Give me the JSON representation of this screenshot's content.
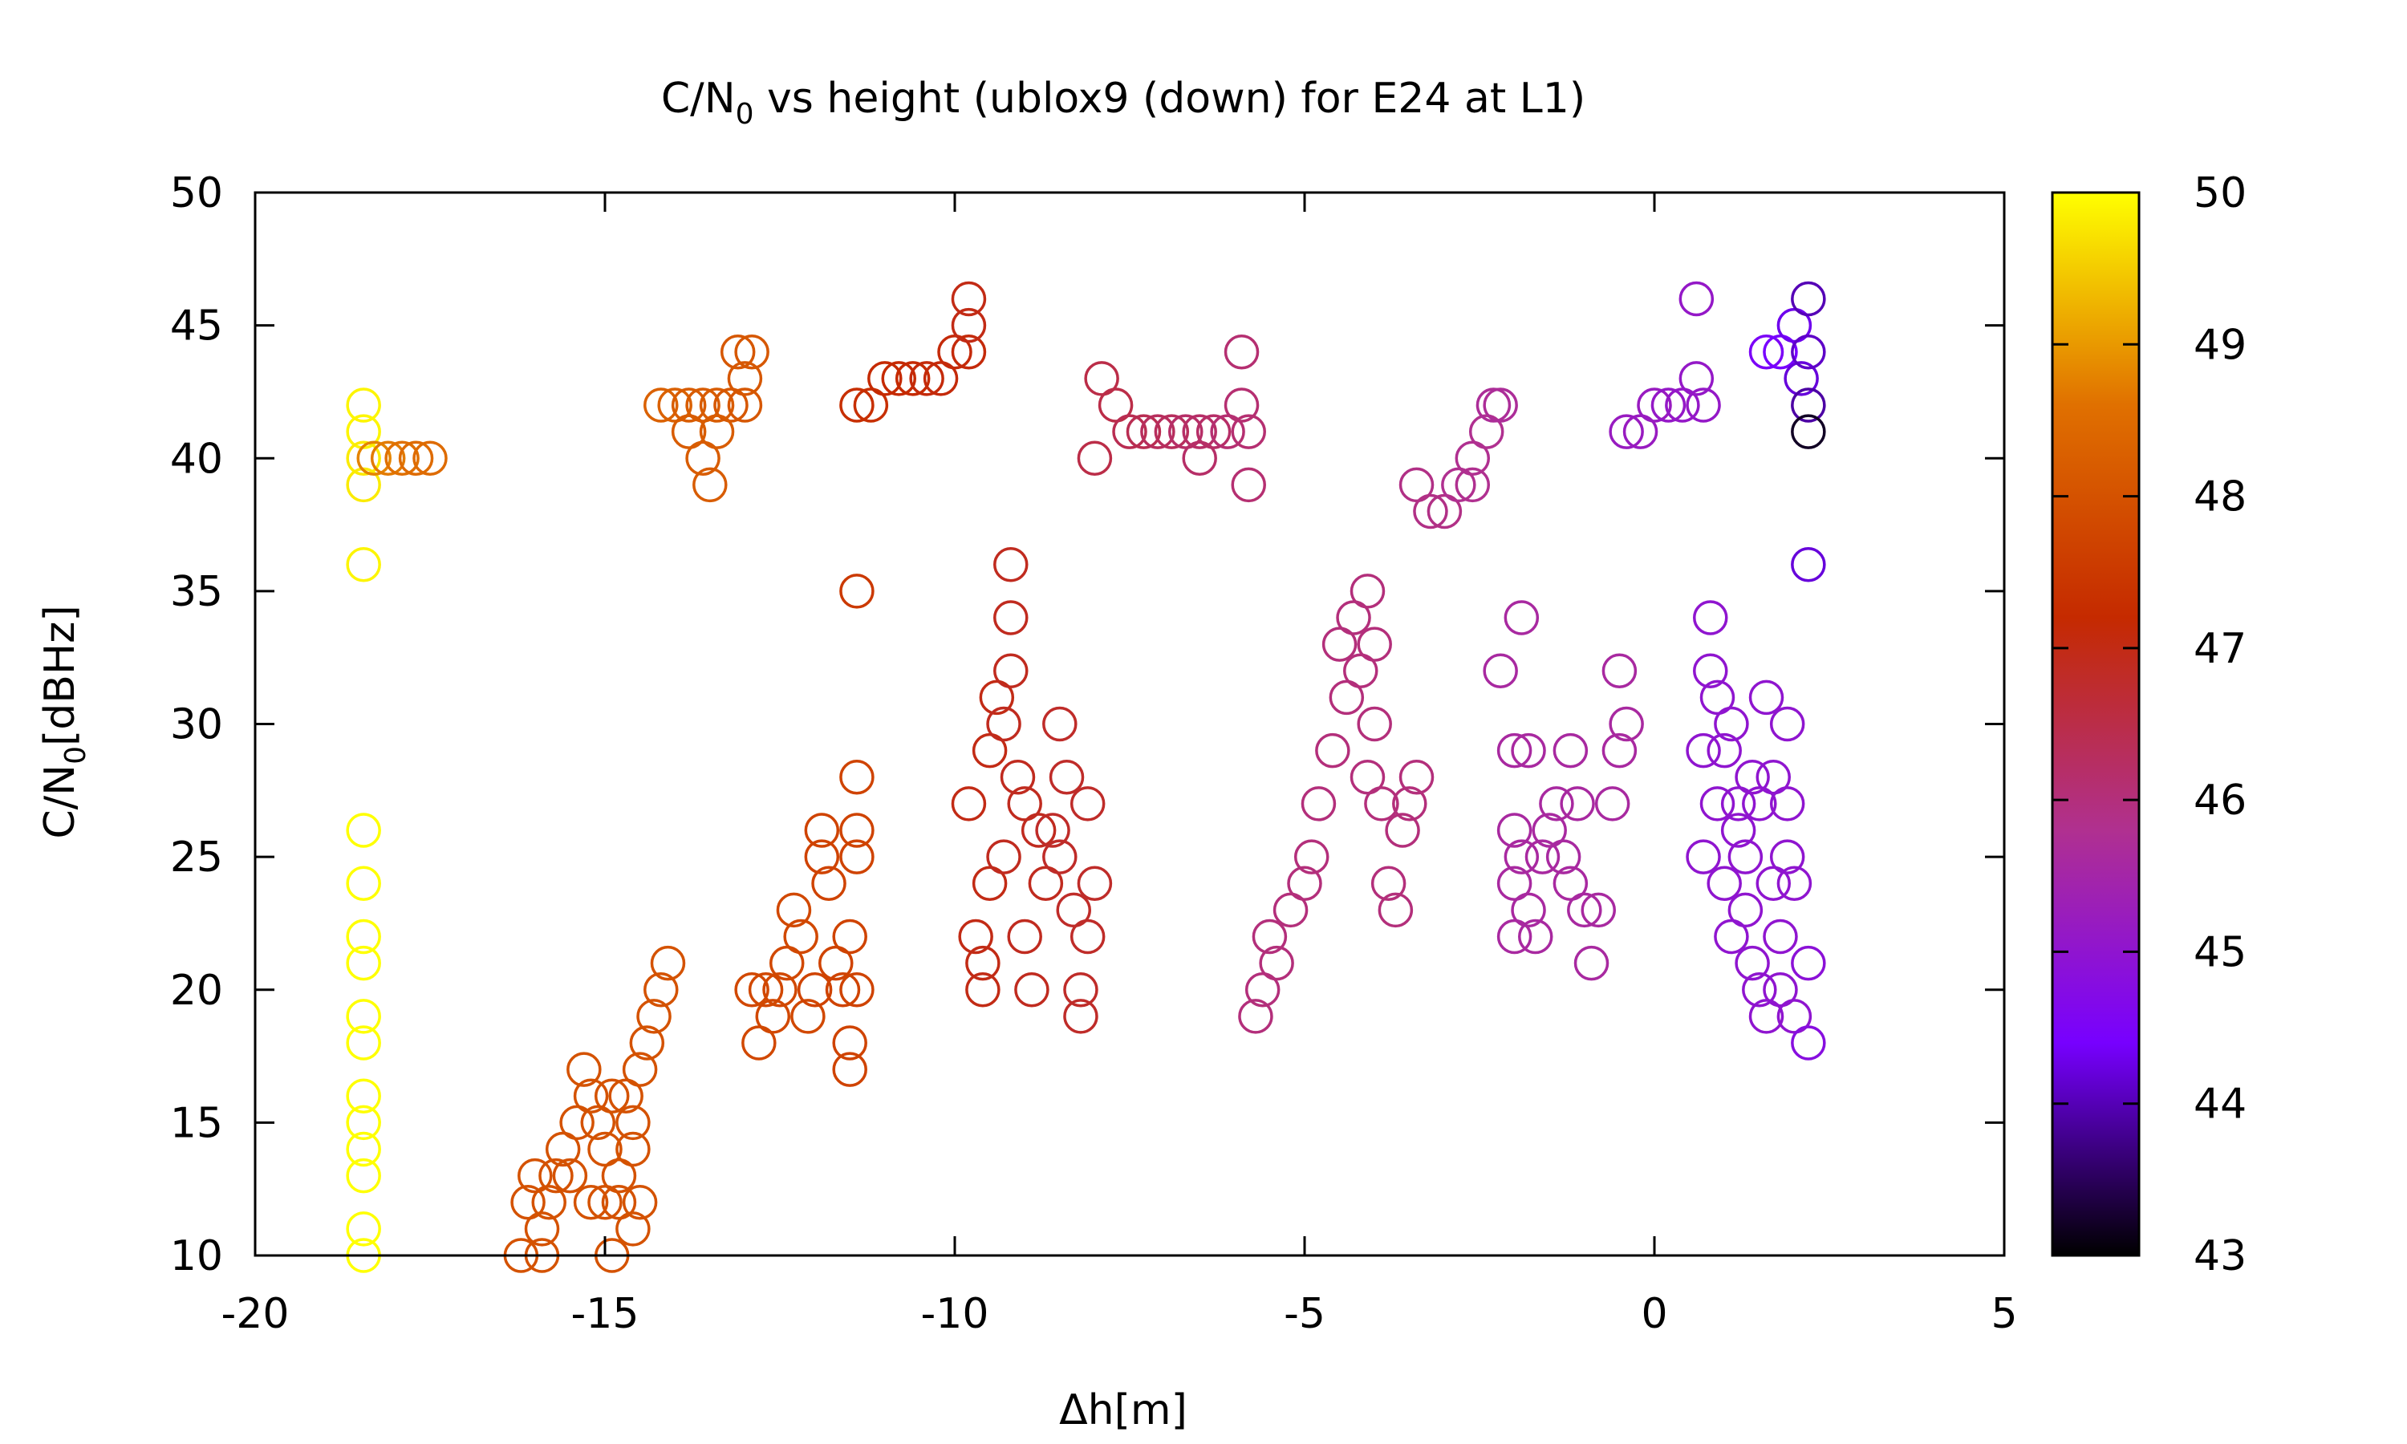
{
  "chart_data": {
    "type": "scatter",
    "title": {
      "prefix": "C/N",
      "sub": "0",
      "rest": " vs height (ublox9 (down) for E24 at L1)"
    },
    "xlabel": "Δh[m]",
    "ylabel": {
      "prefix": "C/N",
      "sub": "0",
      "rest": "[dBHz]"
    },
    "xlim": [
      -20,
      5
    ],
    "ylim": [
      10,
      50
    ],
    "xticks": [
      "-20",
      "-15",
      "-10",
      "-5",
      "0",
      "5"
    ],
    "yticks": [
      "10",
      "15",
      "20",
      "25",
      "30",
      "35",
      "40",
      "45",
      "50"
    ],
    "marker": "open-circle",
    "colorbar": {
      "range": [
        43,
        50
      ],
      "ticks": [
        "43",
        "44",
        "45",
        "46",
        "47",
        "48",
        "49",
        "50"
      ],
      "palette": [
        "#000000",
        "#7700ff",
        "#b03090",
        "#c52a00",
        "#e07000",
        "#ffff00"
      ]
    },
    "grid": false,
    "legend": "none",
    "points": [
      {
        "x": -18.45,
        "y": 42,
        "c": 49.9
      },
      {
        "x": -18.45,
        "y": 41,
        "c": 49.9
      },
      {
        "x": -18.45,
        "y": 40,
        "c": 49.8
      },
      {
        "x": -18.45,
        "y": 39,
        "c": 49.8
      },
      {
        "x": -18.45,
        "y": 36,
        "c": 49.9
      },
      {
        "x": -18.45,
        "y": 26,
        "c": 50.0
      },
      {
        "x": -18.45,
        "y": 24,
        "c": 50.0
      },
      {
        "x": -18.45,
        "y": 22,
        "c": 50.0
      },
      {
        "x": -18.45,
        "y": 21,
        "c": 50.0
      },
      {
        "x": -18.45,
        "y": 19,
        "c": 50.0
      },
      {
        "x": -18.45,
        "y": 18,
        "c": 50.0
      },
      {
        "x": -18.45,
        "y": 16,
        "c": 50.0
      },
      {
        "x": -18.45,
        "y": 15,
        "c": 50.0
      },
      {
        "x": -18.45,
        "y": 14,
        "c": 50.0
      },
      {
        "x": -18.45,
        "y": 13,
        "c": 50.0
      },
      {
        "x": -18.45,
        "y": 11,
        "c": 50.0
      },
      {
        "x": -18.45,
        "y": 10,
        "c": 50.0
      },
      {
        "x": -18.3,
        "y": 40,
        "c": 48.8
      },
      {
        "x": -18.1,
        "y": 40,
        "c": 48.7
      },
      {
        "x": -17.9,
        "y": 40,
        "c": 48.6
      },
      {
        "x": -17.7,
        "y": 40,
        "c": 48.5
      },
      {
        "x": -17.5,
        "y": 40,
        "c": 48.5
      },
      {
        "x": -16.2,
        "y": 10,
        "c": 48.0
      },
      {
        "x": -15.9,
        "y": 10,
        "c": 48.0
      },
      {
        "x": -16.1,
        "y": 12,
        "c": 48.0
      },
      {
        "x": -15.9,
        "y": 11,
        "c": 48.0
      },
      {
        "x": -15.8,
        "y": 12,
        "c": 48.0
      },
      {
        "x": -16.0,
        "y": 13,
        "c": 48.0
      },
      {
        "x": -15.7,
        "y": 13,
        "c": 48.0
      },
      {
        "x": -15.6,
        "y": 14,
        "c": 48.0
      },
      {
        "x": -15.5,
        "y": 13,
        "c": 48.0
      },
      {
        "x": -15.4,
        "y": 15,
        "c": 48.0
      },
      {
        "x": -15.3,
        "y": 17,
        "c": 48.0
      },
      {
        "x": -15.2,
        "y": 16,
        "c": 48.0
      },
      {
        "x": -15.1,
        "y": 15,
        "c": 48.0
      },
      {
        "x": -15.0,
        "y": 14,
        "c": 48.0
      },
      {
        "x": -15.2,
        "y": 12,
        "c": 48.0
      },
      {
        "x": -15.0,
        "y": 12,
        "c": 48.0
      },
      {
        "x": -14.9,
        "y": 10,
        "c": 48.0
      },
      {
        "x": -14.8,
        "y": 13,
        "c": 48.0
      },
      {
        "x": -14.7,
        "y": 16,
        "c": 48.0
      },
      {
        "x": -14.6,
        "y": 15,
        "c": 48.0
      },
      {
        "x": -14.5,
        "y": 17,
        "c": 48.0
      },
      {
        "x": -14.4,
        "y": 18,
        "c": 48.0
      },
      {
        "x": -14.3,
        "y": 19,
        "c": 48.0
      },
      {
        "x": -14.2,
        "y": 20,
        "c": 48.0
      },
      {
        "x": -14.1,
        "y": 21,
        "c": 48.0
      },
      {
        "x": -14.6,
        "y": 14,
        "c": 48.0
      },
      {
        "x": -14.5,
        "y": 12,
        "c": 48.0
      },
      {
        "x": -14.6,
        "y": 11,
        "c": 48.0
      },
      {
        "x": -14.8,
        "y": 12,
        "c": 48.0
      },
      {
        "x": -14.9,
        "y": 16,
        "c": 48.0
      },
      {
        "x": -14.2,
        "y": 42,
        "c": 48.3
      },
      {
        "x": -14.0,
        "y": 42,
        "c": 48.3
      },
      {
        "x": -13.8,
        "y": 42,
        "c": 48.2
      },
      {
        "x": -13.6,
        "y": 42,
        "c": 48.2
      },
      {
        "x": -13.4,
        "y": 42,
        "c": 48.2
      },
      {
        "x": -13.2,
        "y": 42,
        "c": 48.1
      },
      {
        "x": -13.0,
        "y": 42,
        "c": 48.1
      },
      {
        "x": -12.9,
        "y": 44,
        "c": 48.1
      },
      {
        "x": -13.1,
        "y": 44,
        "c": 48.1
      },
      {
        "x": -13.0,
        "y": 43,
        "c": 48.1
      },
      {
        "x": -13.8,
        "y": 41,
        "c": 48.2
      },
      {
        "x": -13.6,
        "y": 40,
        "c": 48.2
      },
      {
        "x": -13.5,
        "y": 39,
        "c": 48.2
      },
      {
        "x": -13.4,
        "y": 41,
        "c": 48.2
      },
      {
        "x": -12.9,
        "y": 20,
        "c": 47.8
      },
      {
        "x": -12.7,
        "y": 20,
        "c": 47.8
      },
      {
        "x": -12.6,
        "y": 19,
        "c": 47.8
      },
      {
        "x": -12.8,
        "y": 18,
        "c": 47.8
      },
      {
        "x": -12.5,
        "y": 20,
        "c": 47.8
      },
      {
        "x": -12.4,
        "y": 21,
        "c": 47.8
      },
      {
        "x": -12.3,
        "y": 23,
        "c": 47.8
      },
      {
        "x": -12.2,
        "y": 22,
        "c": 47.8
      },
      {
        "x": -12.1,
        "y": 19,
        "c": 47.8
      },
      {
        "x": -12.0,
        "y": 20,
        "c": 47.7
      },
      {
        "x": -11.9,
        "y": 25,
        "c": 47.7
      },
      {
        "x": -11.8,
        "y": 24,
        "c": 47.7
      },
      {
        "x": -11.9,
        "y": 26,
        "c": 47.7
      },
      {
        "x": -11.7,
        "y": 21,
        "c": 47.7
      },
      {
        "x": -11.6,
        "y": 20,
        "c": 47.7
      },
      {
        "x": -11.5,
        "y": 22,
        "c": 47.7
      },
      {
        "x": -11.4,
        "y": 25,
        "c": 47.7
      },
      {
        "x": -11.4,
        "y": 26,
        "c": 47.7
      },
      {
        "x": -11.4,
        "y": 28,
        "c": 47.7
      },
      {
        "x": -11.5,
        "y": 18,
        "c": 47.7
      },
      {
        "x": -11.5,
        "y": 17,
        "c": 47.7
      },
      {
        "x": -11.4,
        "y": 20,
        "c": 47.7
      },
      {
        "x": -11.4,
        "y": 35,
        "c": 47.5
      },
      {
        "x": -11.4,
        "y": 42,
        "c": 47.3
      },
      {
        "x": -11.2,
        "y": 42,
        "c": 47.3
      },
      {
        "x": -11.0,
        "y": 43,
        "c": 47.2
      },
      {
        "x": -10.8,
        "y": 43,
        "c": 47.2
      },
      {
        "x": -10.6,
        "y": 43,
        "c": 47.2
      },
      {
        "x": -10.4,
        "y": 43,
        "c": 47.1
      },
      {
        "x": -10.2,
        "y": 43,
        "c": 47.1
      },
      {
        "x": -10.0,
        "y": 44,
        "c": 47.1
      },
      {
        "x": -9.8,
        "y": 44,
        "c": 47.1
      },
      {
        "x": -9.8,
        "y": 45,
        "c": 47.0
      },
      {
        "x": -9.8,
        "y": 46,
        "c": 47.0
      },
      {
        "x": -9.8,
        "y": 27,
        "c": 47.0
      },
      {
        "x": -9.7,
        "y": 22,
        "c": 47.0
      },
      {
        "x": -9.6,
        "y": 21,
        "c": 47.0
      },
      {
        "x": -9.6,
        "y": 20,
        "c": 47.0
      },
      {
        "x": -9.5,
        "y": 24,
        "c": 47.0
      },
      {
        "x": -9.5,
        "y": 29,
        "c": 47.0
      },
      {
        "x": -9.4,
        "y": 31,
        "c": 47.0
      },
      {
        "x": -9.3,
        "y": 30,
        "c": 46.9
      },
      {
        "x": -9.3,
        "y": 25,
        "c": 46.9
      },
      {
        "x": -9.2,
        "y": 32,
        "c": 46.9
      },
      {
        "x": -9.2,
        "y": 34,
        "c": 46.9
      },
      {
        "x": -9.2,
        "y": 36,
        "c": 46.9
      },
      {
        "x": -9.1,
        "y": 28,
        "c": 46.9
      },
      {
        "x": -9.0,
        "y": 27,
        "c": 46.9
      },
      {
        "x": -9.0,
        "y": 22,
        "c": 46.9
      },
      {
        "x": -8.9,
        "y": 20,
        "c": 46.9
      },
      {
        "x": -8.8,
        "y": 26,
        "c": 46.9
      },
      {
        "x": -8.7,
        "y": 24,
        "c": 46.9
      },
      {
        "x": -8.6,
        "y": 26,
        "c": 46.8
      },
      {
        "x": -8.5,
        "y": 30,
        "c": 46.8
      },
      {
        "x": -8.5,
        "y": 25,
        "c": 46.8
      },
      {
        "x": -8.4,
        "y": 28,
        "c": 46.8
      },
      {
        "x": -8.3,
        "y": 23,
        "c": 46.8
      },
      {
        "x": -8.2,
        "y": 20,
        "c": 46.8
      },
      {
        "x": -8.2,
        "y": 19,
        "c": 46.8
      },
      {
        "x": -8.1,
        "y": 22,
        "c": 46.8
      },
      {
        "x": -8.0,
        "y": 24,
        "c": 46.8
      },
      {
        "x": -8.1,
        "y": 27,
        "c": 46.8
      },
      {
        "x": -7.9,
        "y": 43,
        "c": 46.5
      },
      {
        "x": -7.7,
        "y": 42,
        "c": 46.5
      },
      {
        "x": -7.5,
        "y": 41,
        "c": 46.4
      },
      {
        "x": -7.3,
        "y": 41,
        "c": 46.4
      },
      {
        "x": -7.1,
        "y": 41,
        "c": 46.3
      },
      {
        "x": -6.9,
        "y": 41,
        "c": 46.3
      },
      {
        "x": -6.7,
        "y": 41,
        "c": 46.2
      },
      {
        "x": -6.5,
        "y": 41,
        "c": 46.2
      },
      {
        "x": -6.3,
        "y": 41,
        "c": 46.2
      },
      {
        "x": -6.1,
        "y": 41,
        "c": 46.1
      },
      {
        "x": -6.5,
        "y": 40,
        "c": 46.2
      },
      {
        "x": -8.0,
        "y": 40,
        "c": 46.5
      },
      {
        "x": -5.9,
        "y": 44,
        "c": 46.1
      },
      {
        "x": -5.9,
        "y": 42,
        "c": 46.1
      },
      {
        "x": -5.8,
        "y": 41,
        "c": 46.1
      },
      {
        "x": -5.8,
        "y": 39,
        "c": 46.1
      },
      {
        "x": -5.7,
        "y": 19,
        "c": 46.0
      },
      {
        "x": -5.6,
        "y": 20,
        "c": 46.0
      },
      {
        "x": -5.5,
        "y": 22,
        "c": 46.0
      },
      {
        "x": -5.4,
        "y": 21,
        "c": 46.0
      },
      {
        "x": -5.2,
        "y": 23,
        "c": 46.0
      },
      {
        "x": -5.0,
        "y": 24,
        "c": 46.0
      },
      {
        "x": -4.9,
        "y": 25,
        "c": 46.0
      },
      {
        "x": -4.8,
        "y": 27,
        "c": 46.0
      },
      {
        "x": -4.6,
        "y": 29,
        "c": 46.0
      },
      {
        "x": -4.5,
        "y": 33,
        "c": 46.0
      },
      {
        "x": -4.4,
        "y": 31,
        "c": 46.0
      },
      {
        "x": -4.3,
        "y": 34,
        "c": 46.0
      },
      {
        "x": -4.2,
        "y": 32,
        "c": 46.0
      },
      {
        "x": -4.1,
        "y": 35,
        "c": 46.0
      },
      {
        "x": -4.0,
        "y": 33,
        "c": 46.0
      },
      {
        "x": -4.0,
        "y": 30,
        "c": 46.0
      },
      {
        "x": -4.1,
        "y": 28,
        "c": 46.0
      },
      {
        "x": -3.9,
        "y": 27,
        "c": 46.0
      },
      {
        "x": -3.8,
        "y": 24,
        "c": 46.0
      },
      {
        "x": -3.7,
        "y": 23,
        "c": 46.0
      },
      {
        "x": -3.6,
        "y": 26,
        "c": 46.0
      },
      {
        "x": -3.5,
        "y": 27,
        "c": 46.0
      },
      {
        "x": -3.4,
        "y": 28,
        "c": 46.0
      },
      {
        "x": -3.4,
        "y": 39,
        "c": 45.9
      },
      {
        "x": -3.2,
        "y": 38,
        "c": 45.9
      },
      {
        "x": -3.0,
        "y": 38,
        "c": 45.9
      },
      {
        "x": -2.8,
        "y": 39,
        "c": 45.8
      },
      {
        "x": -2.6,
        "y": 39,
        "c": 45.8
      },
      {
        "x": -2.6,
        "y": 40,
        "c": 45.8
      },
      {
        "x": -2.4,
        "y": 41,
        "c": 45.8
      },
      {
        "x": -2.3,
        "y": 42,
        "c": 45.7
      },
      {
        "x": -2.2,
        "y": 42,
        "c": 45.7
      },
      {
        "x": -2.2,
        "y": 32,
        "c": 45.6
      },
      {
        "x": -1.9,
        "y": 34,
        "c": 45.6
      },
      {
        "x": -2.0,
        "y": 29,
        "c": 45.6
      },
      {
        "x": -1.8,
        "y": 29,
        "c": 45.6
      },
      {
        "x": -2.0,
        "y": 26,
        "c": 45.6
      },
      {
        "x": -1.9,
        "y": 25,
        "c": 45.6
      },
      {
        "x": -2.0,
        "y": 24,
        "c": 45.6
      },
      {
        "x": -2.0,
        "y": 22,
        "c": 45.6
      },
      {
        "x": -1.8,
        "y": 23,
        "c": 45.6
      },
      {
        "x": -1.7,
        "y": 22,
        "c": 45.6
      },
      {
        "x": -1.6,
        "y": 25,
        "c": 45.6
      },
      {
        "x": -1.5,
        "y": 26,
        "c": 45.6
      },
      {
        "x": -1.4,
        "y": 27,
        "c": 45.6
      },
      {
        "x": -1.3,
        "y": 25,
        "c": 45.6
      },
      {
        "x": -1.2,
        "y": 24,
        "c": 45.6
      },
      {
        "x": -1.2,
        "y": 29,
        "c": 45.6
      },
      {
        "x": -1.1,
        "y": 27,
        "c": 45.6
      },
      {
        "x": -1.0,
        "y": 23,
        "c": 45.6
      },
      {
        "x": -0.9,
        "y": 21,
        "c": 45.6
      },
      {
        "x": -0.8,
        "y": 23,
        "c": 45.6
      },
      {
        "x": -0.6,
        "y": 27,
        "c": 45.6
      },
      {
        "x": -0.5,
        "y": 29,
        "c": 45.6
      },
      {
        "x": -0.5,
        "y": 32,
        "c": 45.6
      },
      {
        "x": -0.4,
        "y": 30,
        "c": 45.6
      },
      {
        "x": -0.4,
        "y": 41,
        "c": 45.2
      },
      {
        "x": -0.2,
        "y": 41,
        "c": 45.2
      },
      {
        "x": 0.0,
        "y": 42,
        "c": 45.2
      },
      {
        "x": 0.2,
        "y": 42,
        "c": 45.1
      },
      {
        "x": 0.4,
        "y": 42,
        "c": 45.1
      },
      {
        "x": 0.6,
        "y": 43,
        "c": 45.1
      },
      {
        "x": 0.7,
        "y": 42,
        "c": 45.1
      },
      {
        "x": 0.6,
        "y": 46,
        "c": 45.1
      },
      {
        "x": 0.7,
        "y": 29,
        "c": 45.0
      },
      {
        "x": 0.7,
        "y": 25,
        "c": 45.0
      },
      {
        "x": 0.8,
        "y": 34,
        "c": 45.0
      },
      {
        "x": 0.8,
        "y": 32,
        "c": 45.0
      },
      {
        "x": 0.9,
        "y": 31,
        "c": 45.0
      },
      {
        "x": 0.9,
        "y": 27,
        "c": 45.0
      },
      {
        "x": 1.0,
        "y": 29,
        "c": 45.0
      },
      {
        "x": 1.0,
        "y": 24,
        "c": 45.0
      },
      {
        "x": 1.1,
        "y": 30,
        "c": 45.0
      },
      {
        "x": 1.1,
        "y": 22,
        "c": 45.0
      },
      {
        "x": 1.2,
        "y": 27,
        "c": 45.0
      },
      {
        "x": 1.2,
        "y": 26,
        "c": 45.0
      },
      {
        "x": 1.3,
        "y": 25,
        "c": 45.0
      },
      {
        "x": 1.3,
        "y": 23,
        "c": 45.0
      },
      {
        "x": 1.4,
        "y": 28,
        "c": 45.0
      },
      {
        "x": 1.4,
        "y": 21,
        "c": 45.0
      },
      {
        "x": 1.5,
        "y": 20,
        "c": 45.0
      },
      {
        "x": 1.5,
        "y": 27,
        "c": 45.0
      },
      {
        "x": 1.6,
        "y": 31,
        "c": 45.0
      },
      {
        "x": 1.6,
        "y": 19,
        "c": 45.0
      },
      {
        "x": 1.7,
        "y": 24,
        "c": 45.0
      },
      {
        "x": 1.7,
        "y": 28,
        "c": 45.0
      },
      {
        "x": 1.8,
        "y": 22,
        "c": 45.0
      },
      {
        "x": 1.8,
        "y": 20,
        "c": 45.0
      },
      {
        "x": 1.9,
        "y": 25,
        "c": 45.0
      },
      {
        "x": 1.9,
        "y": 30,
        "c": 45.0
      },
      {
        "x": 2.0,
        "y": 19,
        "c": 45.0
      },
      {
        "x": 2.0,
        "y": 24,
        "c": 45.0
      },
      {
        "x": 1.9,
        "y": 27,
        "c": 45.0
      },
      {
        "x": 1.6,
        "y": 44,
        "c": 44.5
      },
      {
        "x": 1.8,
        "y": 44,
        "c": 44.4
      },
      {
        "x": 2.0,
        "y": 45,
        "c": 44.3
      },
      {
        "x": 2.1,
        "y": 43,
        "c": 44.2
      },
      {
        "x": 2.2,
        "y": 44,
        "c": 44.1
      },
      {
        "x": 2.2,
        "y": 46,
        "c": 44.0
      },
      {
        "x": 2.2,
        "y": 42,
        "c": 43.9
      },
      {
        "x": 2.2,
        "y": 41,
        "c": 43.2
      },
      {
        "x": 2.2,
        "y": 36,
        "c": 44.2
      },
      {
        "x": 2.2,
        "y": 21,
        "c": 44.9
      },
      {
        "x": 2.2,
        "y": 18,
        "c": 44.8
      }
    ]
  }
}
